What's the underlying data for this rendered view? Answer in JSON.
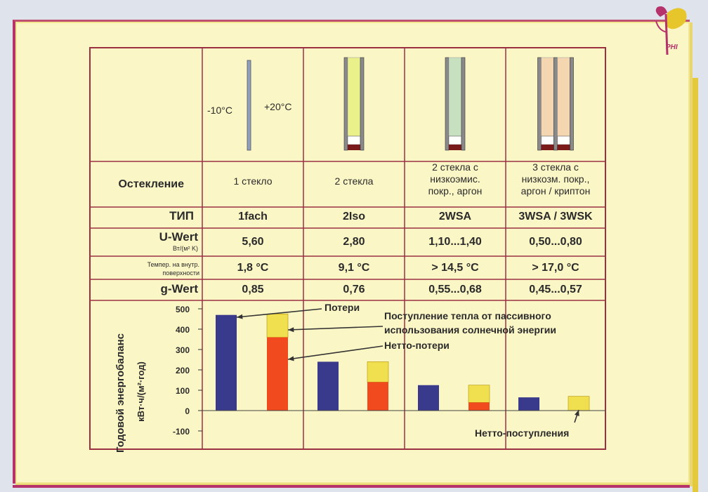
{
  "logo": {
    "text": "PHI"
  },
  "header": {
    "temp_outside": "-10°C",
    "temp_inside": "+20°C"
  },
  "rows": {
    "glazing": {
      "label": "Остекление",
      "values": [
        [
          "1 стекло"
        ],
        [
          "2 стекла"
        ],
        [
          "2 стекла с",
          "низкоэмис.",
          "покр., аргон"
        ],
        [
          "3 стекла с",
          "низкозм. покр.,",
          "аргон / криптон"
        ]
      ]
    },
    "type": {
      "label": "ТИП",
      "values": [
        "1fach",
        "2Iso",
        "2WSA",
        "3WSA / 3WSK"
      ]
    },
    "uwert": {
      "label": "U-Wert",
      "unit": "Вт/(м² K)",
      "values": [
        "5,60",
        "2,80",
        "1,10...1,40",
        "0,50...0,80"
      ]
    },
    "temp": {
      "label_line1": "Темпер. на внутр.",
      "label_line2": "поверхности",
      "values": [
        "1,8 °C",
        "9,1 °C",
        "> 14,5 °C",
        "> 17,0 °C"
      ]
    },
    "gwert": {
      "label": "g-Wert",
      "values": [
        "0,85",
        "0,76",
        "0,55...0,68",
        "0,45...0,57"
      ]
    }
  },
  "annotations": {
    "losses": "Потери",
    "solar_line1": "Поступление тепла от пассивного",
    "solar_line2": "использования солнечной энергии",
    "net_losses": "Нетто-потери",
    "net_gains": "Нетто-поступления"
  },
  "colors": {
    "losses": "#3a3a8c",
    "solar": "#f0e050",
    "net_losses": "#f04a1e",
    "grid": "#9a3040"
  },
  "chart_data": {
    "type": "bar",
    "ylabel_line1": "Годовой энергобаланс",
    "ylabel_line2": "кВт·ч/(м²·год)",
    "ylim": [
      -100,
      500
    ],
    "yticks": [
      "500",
      "400",
      "300",
      "200",
      "100",
      "0",
      "-100"
    ],
    "categories": [
      "1fach",
      "2Iso",
      "2WSA",
      "3WSA / 3WSK"
    ],
    "series": [
      {
        "key": "losses",
        "values": [
          470,
          240,
          125,
          65
        ]
      },
      {
        "key": "solar",
        "values": [
          115,
          100,
          85,
          70
        ]
      },
      {
        "key": "net_losses",
        "values": [
          360,
          140,
          40,
          -5
        ]
      }
    ]
  }
}
